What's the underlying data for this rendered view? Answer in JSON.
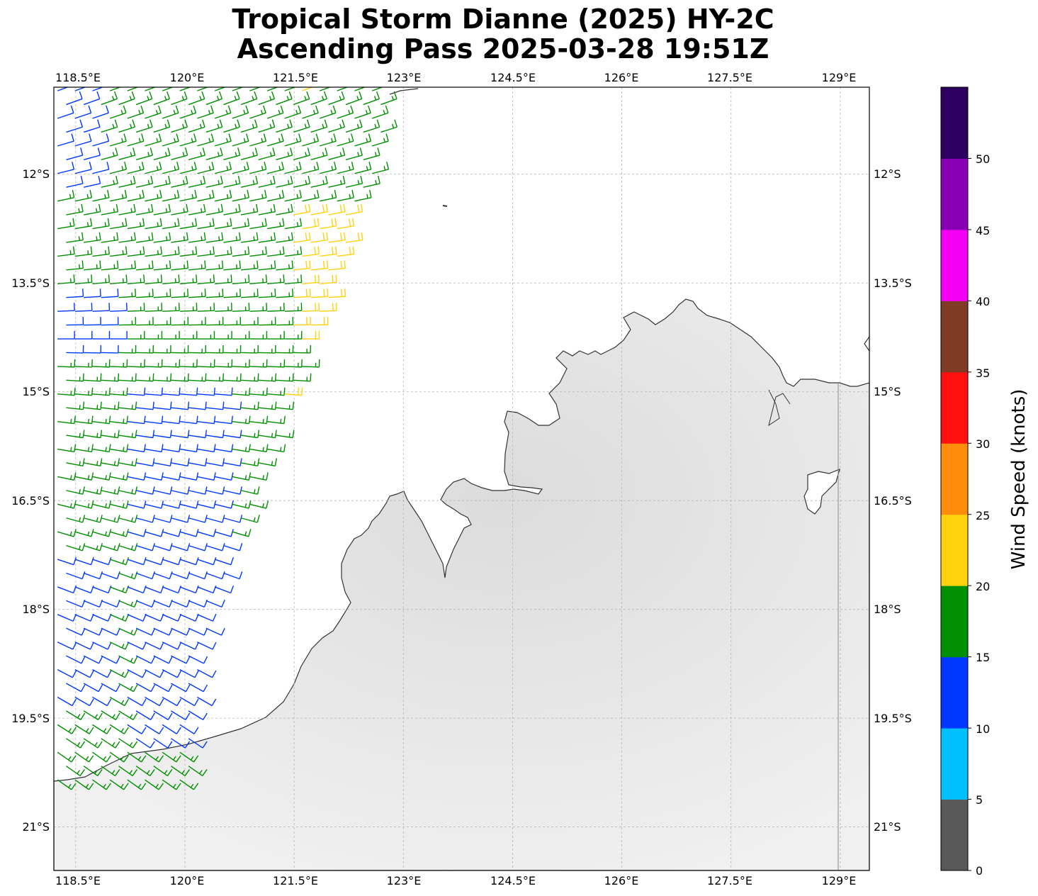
{
  "title": {
    "line1": "Tropical Storm Dianne (2025) HY-2C",
    "line2": "Ascending Pass 2025-03-28 19:51Z"
  },
  "map": {
    "lon_ticks": [
      "118.5°E",
      "120°E",
      "121.5°E",
      "123°E",
      "124.5°E",
      "126°E",
      "127.5°E",
      "129°E"
    ],
    "lat_ticks": [
      "12°S",
      "13.5°S",
      "15°S",
      "16.5°S",
      "18°S",
      "19.5°S",
      "21°S"
    ],
    "lon_range": [
      118.2,
      129.4
    ],
    "lat_range": [
      -10.8,
      -21.6
    ],
    "gridlines": true,
    "land_color": "#ececec",
    "coastline_color": "#333333"
  },
  "colorbar": {
    "title": "Wind Speed (knots)",
    "tick_labels": [
      "0",
      "5",
      "10",
      "15",
      "20",
      "25",
      "30",
      "35",
      "40",
      "45",
      "50"
    ],
    "bins": [
      {
        "min": 0,
        "max": 5,
        "color": "#595959"
      },
      {
        "min": 5,
        "max": 10,
        "color": "#00bfff"
      },
      {
        "min": 10,
        "max": 15,
        "color": "#0038ff"
      },
      {
        "min": 15,
        "max": 20,
        "color": "#008f00"
      },
      {
        "min": 20,
        "max": 25,
        "color": "#ffd20f"
      },
      {
        "min": 25,
        "max": 30,
        "color": "#ff8c0a"
      },
      {
        "min": 30,
        "max": 35,
        "color": "#ff1010"
      },
      {
        "min": 35,
        "max": 40,
        "color": "#7f3b25"
      },
      {
        "min": 40,
        "max": 45,
        "color": "#f500f5"
      },
      {
        "min": 45,
        "max": 50,
        "color": "#8800b3"
      },
      {
        "min": 50,
        "max": 55,
        "color": "#2d0060"
      }
    ]
  },
  "wind_field": {
    "swath_east_edge": [
      [
        122.8,
        -11.3
      ],
      [
        122.4,
        -12.5
      ],
      [
        121.9,
        -14.0
      ],
      [
        121.4,
        -15.3
      ],
      [
        120.9,
        -16.6
      ],
      [
        120.4,
        -18.0
      ],
      [
        120.1,
        -19.6
      ]
    ],
    "zones": [
      {
        "name": "yellow-core-north",
        "lon_range": [
          121.4,
          122.6
        ],
        "lat_range": [
          -12.4,
          -14.4
        ],
        "knots": 22
      },
      {
        "name": "yellow-core-south",
        "lon_range": [
          121.3,
          121.6
        ],
        "lat_range": [
          -14.9,
          -15.3
        ],
        "knots": 21
      },
      {
        "name": "yellow-top",
        "lon_range": [
          121.5,
          121.8
        ],
        "lat_range": [
          -10.8,
          -11.0
        ],
        "knots": 21
      },
      {
        "name": "blue-west-edge",
        "lon_range": [
          118.2,
          118.8
        ],
        "lat_range": [
          -10.8,
          -12.3
        ],
        "knots": 13
      },
      {
        "name": "blue-west-mid",
        "lon_range": [
          118.2,
          119.0
        ],
        "lat_range": [
          -13.6,
          -14.6
        ],
        "knots": 13
      },
      {
        "name": "blue-inner",
        "lon_range": [
          119.2,
          120.6
        ],
        "lat_range": [
          -15.0,
          -19.9
        ],
        "knots": 13
      },
      {
        "name": "blue-southwest",
        "lon_range": [
          118.2,
          118.9
        ],
        "lat_range": [
          -17.3,
          -19.4
        ],
        "knots": 13
      },
      {
        "name": "cyan-tip",
        "lon_range": [
          119.7,
          120.1
        ],
        "lat_range": [
          -19.6,
          -19.9
        ],
        "knots": 8
      }
    ],
    "default_knots": 17
  }
}
